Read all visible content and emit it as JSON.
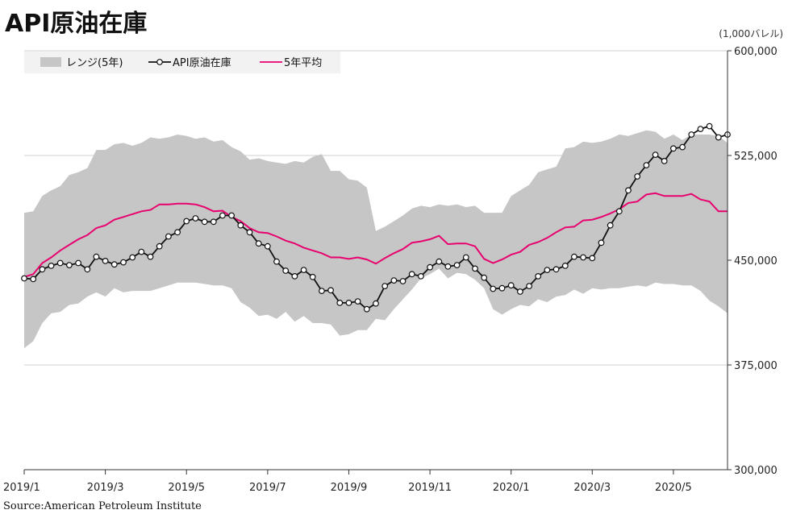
{
  "title": "API原油在庫",
  "unit": "(1,000バレル)",
  "source": "Source:American Petroleum Institute",
  "colors": {
    "range": "#c6c6c6",
    "actual": "#111111",
    "avg": "#e8006e",
    "grid": "#cfcfcf",
    "legend_bg": "#f2f2f2"
  },
  "chart_data": {
    "type": "line",
    "title": "API原油在庫",
    "ylabel": "(1,000バレル)",
    "ylim": [
      300000,
      600000
    ],
    "yticks": [
      300000,
      375000,
      450000,
      525000,
      600000
    ],
    "ytick_labels": [
      "300,000",
      "375,000",
      "450,000",
      "525,000",
      "600,000"
    ],
    "xtick_labels": [
      "2019/1",
      "2019/3",
      "2019/5",
      "2019/7",
      "2019/9",
      "2019/11",
      "2020/1",
      "2020/3",
      "2020/5"
    ],
    "xtick_weeks": [
      0,
      9,
      18,
      27,
      36,
      45,
      54,
      63,
      72
    ],
    "grid": true,
    "legend": {
      "position": "top-left",
      "entries": [
        "レンジ(5年)",
        "API原油在庫",
        "5年平均"
      ]
    },
    "series": [
      {
        "name": "API原油在庫",
        "type": "line-marker",
        "values": [
          437000,
          436500,
          443500,
          446000,
          448000,
          446500,
          448000,
          443500,
          452500,
          449500,
          447000,
          448500,
          452000,
          456000,
          452500,
          460000,
          467000,
          470000,
          478000,
          480000,
          477500,
          477500,
          482000,
          482000,
          475000,
          470000,
          462000,
          460000,
          449000,
          442500,
          438500,
          443000,
          438000,
          428000,
          428500,
          419500,
          419500,
          420500,
          415000,
          419000,
          431500,
          435500,
          435000,
          440000,
          438500,
          445000,
          449000,
          445500,
          446500,
          452000,
          444000,
          437500,
          429500,
          430000,
          432000,
          427500,
          431500,
          438500,
          443000,
          443500,
          446000,
          452500,
          452000,
          451500,
          462500,
          475000,
          485000,
          500000,
          510000,
          518000,
          525500,
          521000,
          530000,
          531000,
          540000,
          544000,
          546000,
          538000,
          540000
        ]
      },
      {
        "name": "5年平均",
        "type": "line",
        "values": [
          438000,
          440000,
          448000,
          452000,
          457000,
          461000,
          465000,
          468000,
          473000,
          475000,
          479000,
          481000,
          483000,
          485000,
          486000,
          490000,
          490000,
          490500,
          490500,
          490000,
          488000,
          485000,
          485500,
          481000,
          478000,
          473000,
          470000,
          469500,
          467000,
          464000,
          462000,
          459000,
          457000,
          455000,
          452000,
          452000,
          451000,
          452000,
          450500,
          447500,
          451500,
          455000,
          458000,
          462500,
          463500,
          465000,
          467500,
          461500,
          462000,
          462000,
          460000,
          451000,
          448000,
          450500,
          454000,
          456000,
          461000,
          463000,
          466000,
          470000,
          473500,
          474000,
          478500,
          479000,
          481000,
          483500,
          486500,
          491000,
          492000,
          497000,
          498000,
          496000,
          496000,
          496000,
          497500,
          493500,
          492000,
          485000,
          485000
        ]
      },
      {
        "name": "レンジ(5年)",
        "type": "range-band",
        "upper": [
          484000,
          485000,
          496000,
          500000,
          503000,
          511000,
          513000,
          516000,
          529000,
          529000,
          533000,
          534000,
          532000,
          534000,
          538000,
          537000,
          538000,
          540000,
          539000,
          537000,
          538000,
          535000,
          536000,
          531000,
          528000,
          522000,
          523000,
          521000,
          520000,
          519000,
          521000,
          520000,
          524000,
          526000,
          514000,
          514000,
          508000,
          507000,
          502000,
          471000,
          474000,
          478000,
          482000,
          487000,
          489000,
          488000,
          490000,
          489000,
          490000,
          488000,
          489000,
          484000,
          484000,
          484000,
          496000,
          500000,
          504000,
          513000,
          515000,
          517000,
          530000,
          531000,
          535000,
          534000,
          535000,
          537000,
          540000,
          539000,
          541000,
          543000,
          542000,
          537000,
          540000,
          536000,
          540000,
          540000,
          540000,
          539000,
          534000
        ],
        "lower": [
          387000,
          392000,
          405000,
          412000,
          413000,
          418000,
          419000,
          424000,
          427000,
          424000,
          430000,
          427000,
          428000,
          428000,
          428000,
          430000,
          432000,
          434000,
          434000,
          434000,
          433000,
          432000,
          432000,
          430000,
          420000,
          416000,
          410000,
          411000,
          408000,
          413000,
          406000,
          410000,
          405000,
          405000,
          404000,
          396000,
          397000,
          400000,
          400000,
          408000,
          407000,
          415000,
          422000,
          429000,
          437000,
          440000,
          444000,
          437000,
          441000,
          440000,
          436000,
          430000,
          415000,
          411000,
          415000,
          418000,
          417000,
          422000,
          420000,
          424000,
          425000,
          429000,
          426000,
          430000,
          429000,
          430000,
          430000,
          431000,
          432000,
          431000,
          434000,
          433000,
          433000,
          432000,
          432000,
          428000,
          421000,
          417000,
          412000
        ]
      }
    ]
  }
}
